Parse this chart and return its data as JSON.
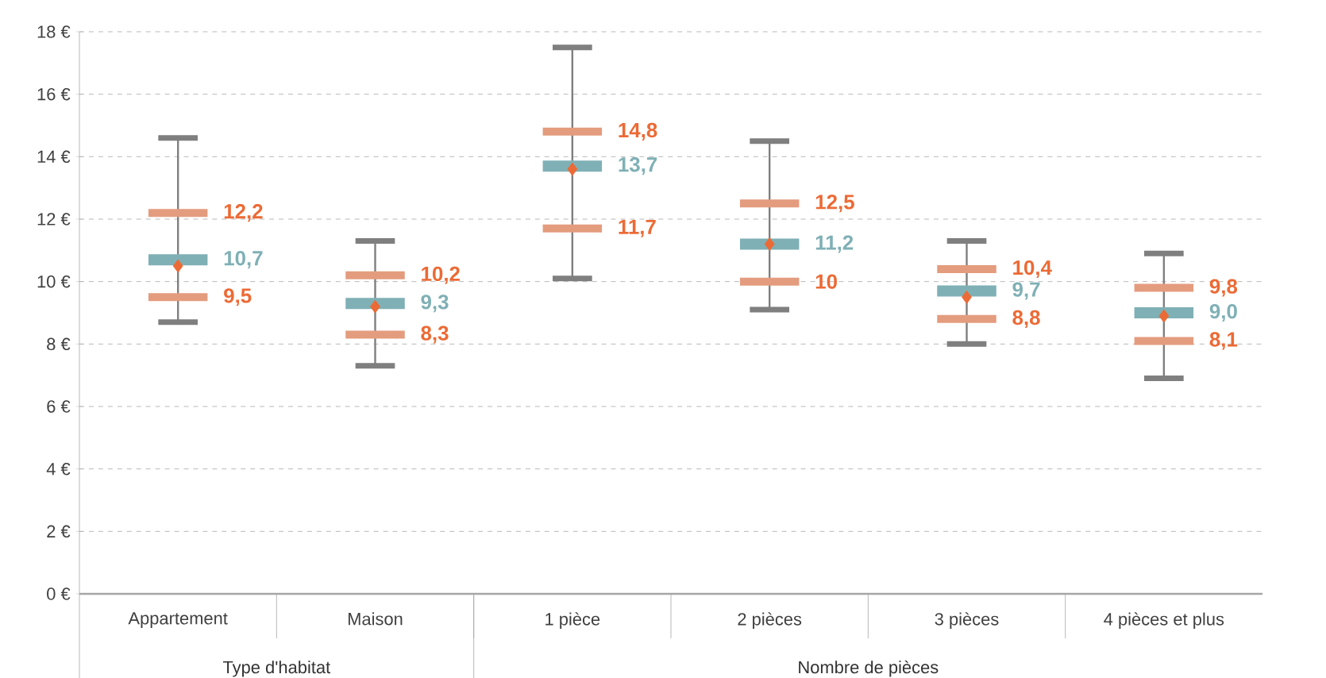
{
  "chart_data": {
    "type": "box",
    "categories": [
      "Appartement",
      "Maison",
      "1 pièce",
      "2 pièces",
      "3 pièces",
      "4 pièces et plus"
    ],
    "series": [
      {
        "color": "#e49c7e",
        "boxes": [
          {
            "low": 8.7,
            "q1": 9.5,
            "median": 10.7,
            "q3": 12.2,
            "high": 14.6,
            "mean": 10.5
          },
          {
            "low": 7.3,
            "q1": 8.3,
            "median": 9.3,
            "q3": 10.2,
            "high": 11.3,
            "mean": 9.2
          },
          {
            "low": 10.1,
            "q1": 11.7,
            "median": 13.7,
            "q3": 14.8,
            "high": 17.5,
            "mean": 13.6
          },
          {
            "low": 9.1,
            "q1": 10,
            "median": 11.2,
            "q3": 12.5,
            "high": 14.5,
            "mean": 11.2
          },
          {
            "low": 8.0,
            "q1": 8.8,
            "median": 9.7,
            "q3": 10.4,
            "high": 11.3,
            "mean": 9.5
          },
          {
            "low": 6.9,
            "q1": 8.1,
            "median": 9.0,
            "q3": 9.8,
            "high": 10.9,
            "mean": 8.9
          }
        ]
      }
    ],
    "ylim": [
      0,
      18
    ],
    "yticks": [
      {
        "value": 0,
        "label": "0 €"
      },
      {
        "value": 2,
        "label": "2 €"
      },
      {
        "value": 4,
        "label": "4 €"
      },
      {
        "value": 6,
        "label": "6 €"
      },
      {
        "value": 8,
        "label": "8 €"
      },
      {
        "value": 10,
        "label": "10 €"
      },
      {
        "value": 12,
        "label": "12 €"
      },
      {
        "value": 14,
        "label": "14 €"
      },
      {
        "value": 16,
        "label": "16 €"
      },
      {
        "value": 18,
        "label": "18 €"
      }
    ],
    "grid": "y",
    "annotations": [
      {
        "text": "12,2",
        "x": "Appartement",
        "y": 12.2
      },
      {
        "text": "10,7",
        "x": "Appartement",
        "y": 10.7
      },
      {
        "text": "9,5",
        "x": "Appartement",
        "y": 9.5
      },
      {
        "text": "10,2",
        "x": "Maison",
        "y": 10.2
      },
      {
        "text": "9,3",
        "x": "Maison",
        "y": 9.3
      },
      {
        "text": "8,3",
        "x": "Maison",
        "y": 8.3
      },
      {
        "text": "14,8",
        "x": "1 pièce",
        "y": 14.8
      },
      {
        "text": "13,7",
        "x": "1 pièce",
        "y": 13.7
      },
      {
        "text": "11,7",
        "x": "1 pièce",
        "y": 11.7
      },
      {
        "text": "12,5",
        "x": "2 pièces",
        "y": 12.5
      },
      {
        "text": "11,2",
        "x": "2 pièces",
        "y": 11.2
      },
      {
        "text": "10",
        "x": "2 pièces",
        "y": 10
      },
      {
        "text": "10,4",
        "x": "3 pièces",
        "y": 10.4
      },
      {
        "text": "9,7",
        "x": "3 pièces",
        "y": 9.7
      },
      {
        "text": "8,8",
        "x": "3 pièces",
        "y": 8.8
      },
      {
        "text": "9,8",
        "x": "4 pièces et plus",
        "y": 9.8
      },
      {
        "text": "9,0",
        "x": "4 pièces et plus",
        "y": 9.0
      },
      {
        "text": "8,1",
        "x": "4 pièces et plus",
        "y": 8.1
      },
      "Type d'habitat",
      "Nombre de pièces"
    ]
  }
}
